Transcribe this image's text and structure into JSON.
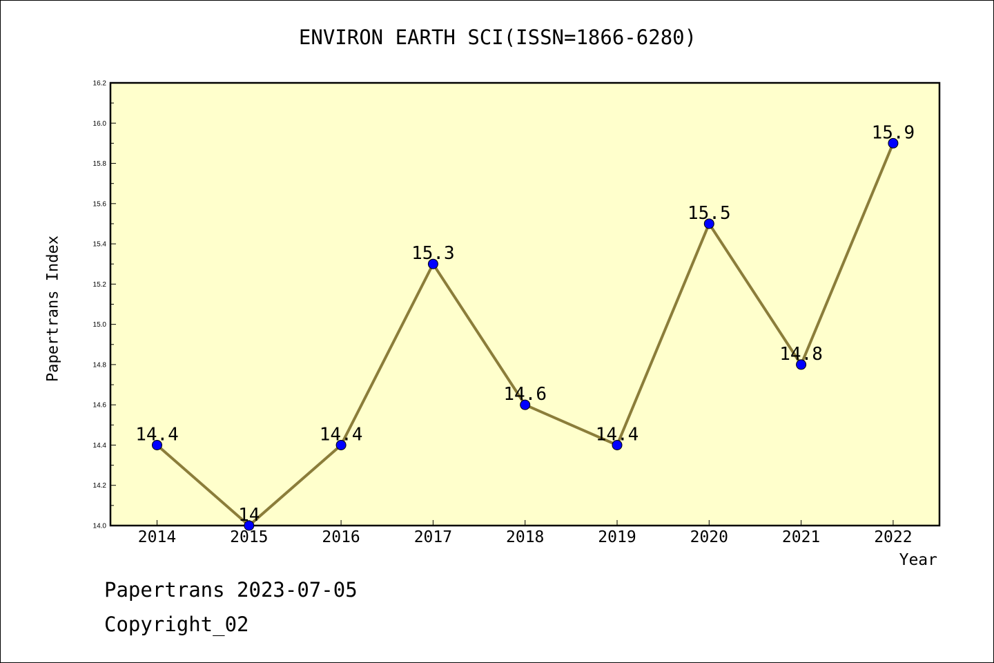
{
  "colors": {
    "plot_background": "#ffffcc",
    "line": "#8b7d3a",
    "marker": "#0000ff"
  },
  "footer": {
    "date_line": "Papertrans 2023-07-05",
    "copyright_line": "Copyright_02"
  },
  "chart_data": {
    "type": "line",
    "title": "ENVIRON EARTH SCI(ISSN=1866-6280)",
    "xlabel": "Year",
    "ylabel": "Papertrans Index",
    "categories": [
      "2014",
      "2015",
      "2016",
      "2017",
      "2018",
      "2019",
      "2020",
      "2021",
      "2022"
    ],
    "values": [
      14.4,
      14.0,
      14.4,
      15.3,
      14.6,
      14.4,
      15.5,
      14.8,
      15.9
    ],
    "data_labels": [
      "14.4",
      "14",
      "14.4",
      "15.3",
      "14.6",
      "14.4",
      "15.5",
      "14.8",
      "15.9"
    ],
    "ylim": [
      14.0,
      16.2
    ],
    "yticks": [
      "14.0",
      "14.2",
      "14.4",
      "14.6",
      "14.8",
      "15.0",
      "15.2",
      "15.4",
      "15.6",
      "15.8",
      "16.0",
      "16.2"
    ],
    "grid": false,
    "legend": "none"
  }
}
